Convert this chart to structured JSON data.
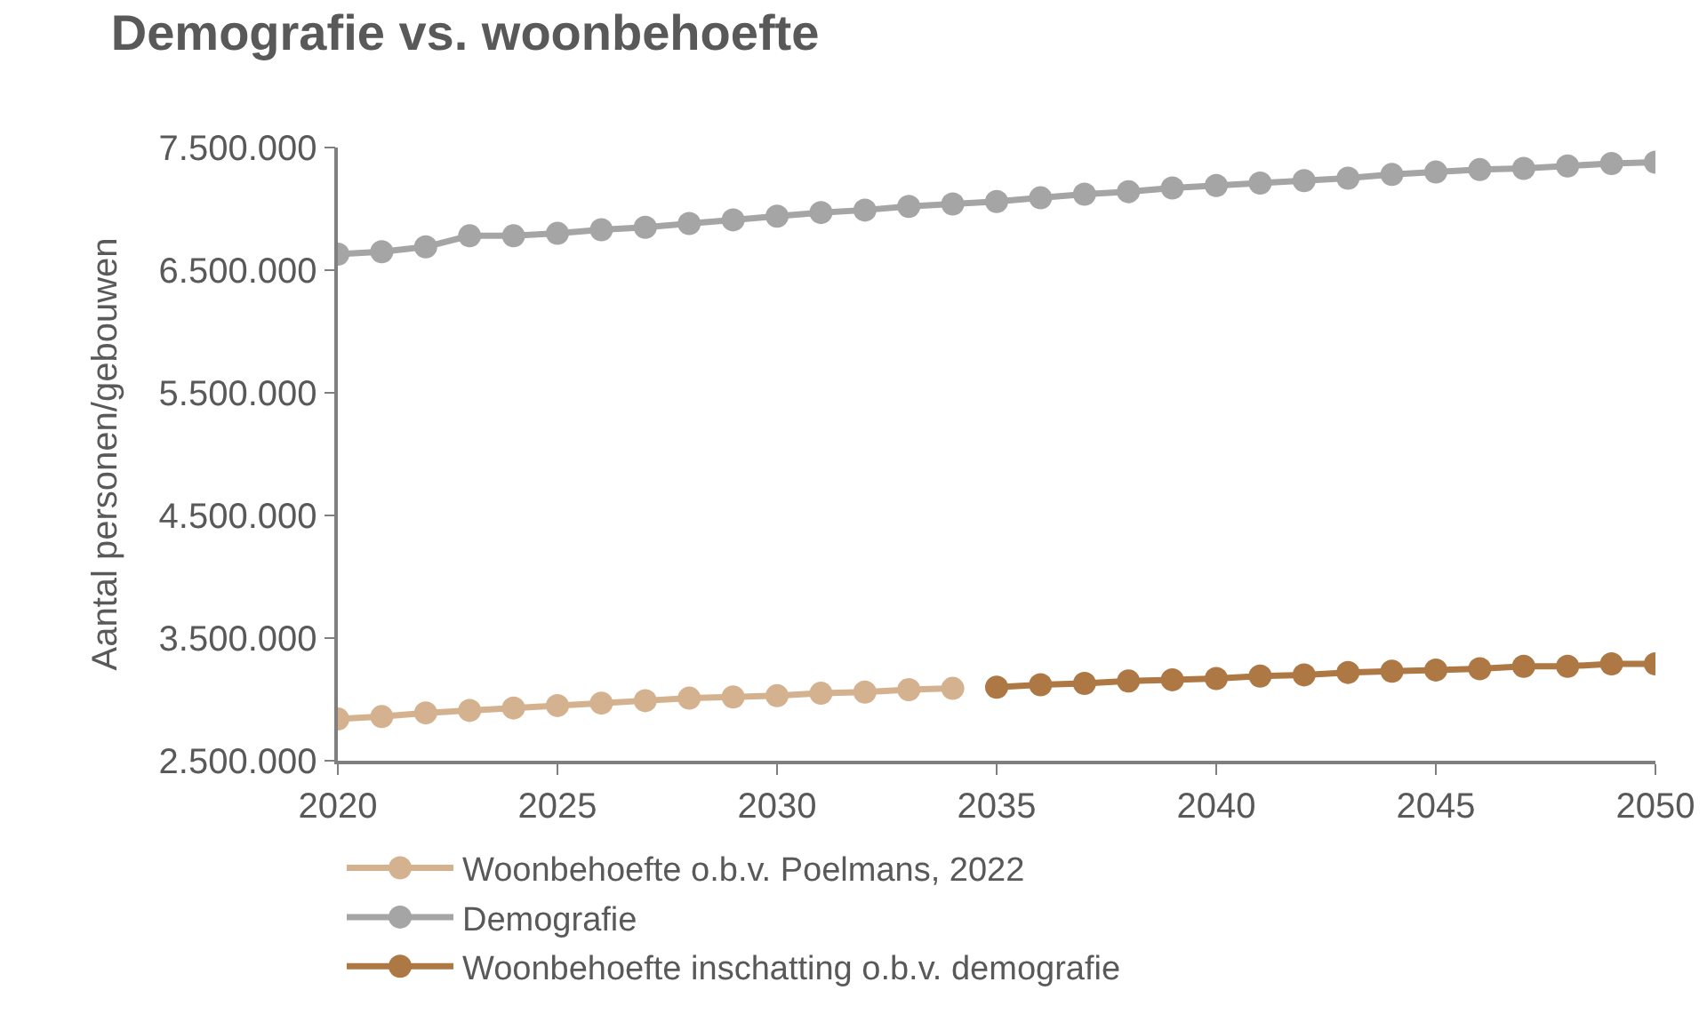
{
  "chart_data": {
    "type": "line",
    "title": "Demografie vs. woonbehoefte",
    "ylabel": "Aantal personen/gebouwen",
    "xlim": [
      2020,
      2050
    ],
    "xticks": [
      2020,
      2025,
      2030,
      2035,
      2040,
      2045,
      2050
    ],
    "ylim": [
      2500000,
      7500000
    ],
    "yticks": [
      {
        "value": 2500000,
        "label": "2.500.000"
      },
      {
        "value": 3500000,
        "label": "3.500.000"
      },
      {
        "value": 4500000,
        "label": "4.500.000"
      },
      {
        "value": 5500000,
        "label": "5.500.000"
      },
      {
        "value": 6500000,
        "label": "6.500.000"
      },
      {
        "value": 7500000,
        "label": "7.500.000"
      }
    ],
    "legend": "bottom",
    "marker": "circle",
    "line_style": "solid",
    "series": [
      {
        "name": "Woonbehoefte o.b.v. Poelmans, 2022",
        "color": "#d5b28f",
        "x": [
          2020,
          2021,
          2022,
          2023,
          2024,
          2025,
          2026,
          2027,
          2028,
          2029,
          2030,
          2031,
          2032,
          2033,
          2034
        ],
        "values": [
          2840000,
          2860000,
          2890000,
          2910000,
          2930000,
          2950000,
          2970000,
          2990000,
          3010000,
          3020000,
          3030000,
          3050000,
          3060000,
          3080000,
          3090000
        ]
      },
      {
        "name": "Demografie",
        "color": "#a5a5a5",
        "x": [
          2020,
          2021,
          2022,
          2023,
          2024,
          2025,
          2026,
          2027,
          2028,
          2029,
          2030,
          2031,
          2032,
          2033,
          2034,
          2035,
          2036,
          2037,
          2038,
          2039,
          2040,
          2041,
          2042,
          2043,
          2044,
          2045,
          2046,
          2047,
          2048,
          2049,
          2050
        ],
        "values": [
          6630000,
          6650000,
          6690000,
          6780000,
          6780000,
          6800000,
          6830000,
          6850000,
          6880000,
          6910000,
          6940000,
          6970000,
          6990000,
          7020000,
          7040000,
          7060000,
          7090000,
          7120000,
          7140000,
          7170000,
          7190000,
          7210000,
          7230000,
          7250000,
          7280000,
          7300000,
          7320000,
          7330000,
          7350000,
          7370000,
          7380000
        ]
      },
      {
        "name": "Woonbehoefte inschatting o.b.v. demografie",
        "color": "#ae7845",
        "x": [
          2035,
          2036,
          2037,
          2038,
          2039,
          2040,
          2041,
          2042,
          2043,
          2044,
          2045,
          2046,
          2047,
          2048,
          2049,
          2050
        ],
        "values": [
          3100000,
          3120000,
          3130000,
          3150000,
          3160000,
          3170000,
          3190000,
          3200000,
          3220000,
          3230000,
          3240000,
          3250000,
          3270000,
          3270000,
          3290000,
          3290000
        ]
      }
    ]
  }
}
